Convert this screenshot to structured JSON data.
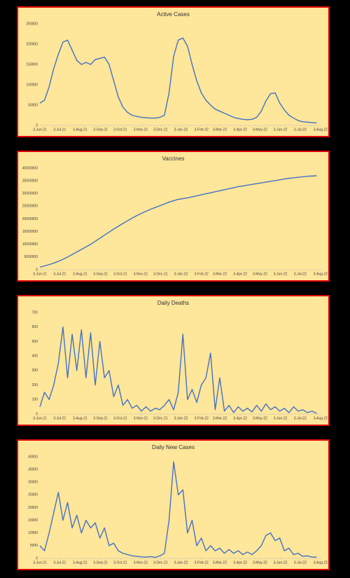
{
  "chart_data": [
    {
      "type": "line",
      "title": "Active Cases",
      "color": "#4472c4",
      "x": [
        "2021-06-03",
        "2021-06-10",
        "2021-06-17",
        "2021-06-24",
        "2021-07-01",
        "2021-07-08",
        "2021-07-15",
        "2021-07-22",
        "2021-07-29",
        "2021-08-05",
        "2021-08-12",
        "2021-08-19",
        "2021-08-26",
        "2021-09-02",
        "2021-09-09",
        "2021-09-16",
        "2021-09-23",
        "2021-09-30",
        "2021-10-07",
        "2021-10-14",
        "2021-10-21",
        "2021-10-28",
        "2021-11-04",
        "2021-11-11",
        "2021-11-18",
        "2021-11-25",
        "2021-12-02",
        "2021-12-09",
        "2021-12-16",
        "2021-12-23",
        "2021-12-30",
        "2022-01-06",
        "2022-01-13",
        "2022-01-20",
        "2022-01-27",
        "2022-02-03",
        "2022-02-10",
        "2022-02-17",
        "2022-02-24",
        "2022-03-03",
        "2022-03-10",
        "2022-03-17",
        "2022-03-24",
        "2022-03-31",
        "2022-04-07",
        "2022-04-14",
        "2022-04-21",
        "2022-04-28",
        "2022-05-05",
        "2022-05-12",
        "2022-05-19",
        "2022-05-26",
        "2022-06-02",
        "2022-06-09",
        "2022-06-16",
        "2022-06-23",
        "2022-06-30",
        "2022-07-07",
        "2022-07-14",
        "2022-07-21",
        "2022-07-28"
      ],
      "values": [
        55000,
        62000,
        95000,
        140000,
        175000,
        205000,
        210000,
        185000,
        160000,
        150000,
        155000,
        150000,
        162000,
        165000,
        168000,
        150000,
        110000,
        70000,
        45000,
        32000,
        25000,
        22000,
        20000,
        19000,
        18000,
        18000,
        20000,
        25000,
        80000,
        170000,
        210000,
        215000,
        195000,
        150000,
        110000,
        80000,
        62000,
        50000,
        40000,
        35000,
        30000,
        25000,
        20000,
        17000,
        15000,
        14000,
        15000,
        20000,
        35000,
        60000,
        78000,
        80000,
        55000,
        38000,
        25000,
        18000,
        12000,
        9000,
        8000,
        7000,
        6000
      ],
      "xlim": [
        "2021-06-03",
        "2022-08-03"
      ],
      "xticks": [
        {
          "value": "2021-06-03",
          "label": "3-Jun-21"
        },
        {
          "value": "2021-07-03",
          "label": "3-Jul-21"
        },
        {
          "value": "2021-08-03",
          "label": "3-Aug-21"
        },
        {
          "value": "2021-09-03",
          "label": "3-Sep-21"
        },
        {
          "value": "2021-10-03",
          "label": "3-Oct-21"
        },
        {
          "value": "2021-11-03",
          "label": "3-Nov-21"
        },
        {
          "value": "2021-12-03",
          "label": "3-Dec-21"
        },
        {
          "value": "2022-01-03",
          "label": "3-Jan-22"
        },
        {
          "value": "2022-02-03",
          "label": "3-Feb-22"
        },
        {
          "value": "2022-03-03",
          "label": "3-Mar-22"
        },
        {
          "value": "2022-04-03",
          "label": "3-Apr-22"
        },
        {
          "value": "2022-05-03",
          "label": "3-May-22"
        },
        {
          "value": "2022-06-03",
          "label": "3-Jun-22"
        },
        {
          "value": "2022-07-03",
          "label": "3-Jul-22"
        },
        {
          "value": "2022-08-03",
          "label": "3-Aug-22"
        }
      ],
      "ylim": [
        0,
        250000
      ],
      "yticks": [
        0,
        50000,
        100000,
        150000,
        200000,
        250000
      ]
    },
    {
      "type": "line",
      "title": "Vaccines",
      "color": "#4472c4",
      "x": [
        "2021-06-03",
        "2021-06-10",
        "2021-06-17",
        "2021-06-24",
        "2021-07-01",
        "2021-07-08",
        "2021-07-15",
        "2021-07-22",
        "2021-07-29",
        "2021-08-05",
        "2021-08-12",
        "2021-08-19",
        "2021-08-26",
        "2021-09-02",
        "2021-09-09",
        "2021-09-16",
        "2021-09-23",
        "2021-09-30",
        "2021-10-07",
        "2021-10-14",
        "2021-10-21",
        "2021-10-28",
        "2021-11-04",
        "2021-11-11",
        "2021-11-18",
        "2021-11-25",
        "2021-12-02",
        "2021-12-09",
        "2021-12-16",
        "2021-12-23",
        "2021-12-30",
        "2022-01-06",
        "2022-01-13",
        "2022-01-20",
        "2022-01-27",
        "2022-02-03",
        "2022-02-10",
        "2022-02-17",
        "2022-02-24",
        "2022-03-03",
        "2022-03-10",
        "2022-03-17",
        "2022-03-24",
        "2022-03-31",
        "2022-04-07",
        "2022-04-14",
        "2022-04-21",
        "2022-04-28",
        "2022-05-05",
        "2022-05-12",
        "2022-05-19",
        "2022-05-26",
        "2022-06-02",
        "2022-06-09",
        "2022-06-16",
        "2022-06-23",
        "2022-06-30",
        "2022-07-07",
        "2022-07-14",
        "2022-07-21",
        "2022-07-28"
      ],
      "values": [
        1000000,
        1500000,
        2000000,
        2600000,
        3300000,
        4100000,
        5000000,
        6000000,
        7000000,
        8000000,
        9000000,
        10000000,
        11200000,
        12400000,
        13600000,
        14800000,
        16000000,
        17100000,
        18200000,
        19300000,
        20300000,
        21300000,
        22200000,
        23000000,
        23800000,
        24500000,
        25200000,
        25900000,
        26600000,
        27200000,
        27700000,
        28000000,
        28300000,
        28700000,
        29100000,
        29500000,
        29900000,
        30300000,
        30700000,
        31100000,
        31500000,
        31900000,
        32300000,
        32700000,
        33000000,
        33300000,
        33600000,
        33900000,
        34200000,
        34500000,
        34800000,
        35100000,
        35400000,
        35700000,
        36000000,
        36200000,
        36400000,
        36600000,
        36800000,
        36900000,
        37000000
      ],
      "xlim": [
        "2021-06-03",
        "2022-08-03"
      ],
      "xticks": [
        {
          "value": "2021-06-03",
          "label": "3-Jun-21"
        },
        {
          "value": "2021-07-03",
          "label": "3-Jul-21"
        },
        {
          "value": "2021-08-03",
          "label": "3-Aug-21"
        },
        {
          "value": "2021-09-03",
          "label": "3-Sep-21"
        },
        {
          "value": "2021-10-03",
          "label": "3-Oct-21"
        },
        {
          "value": "2021-11-03",
          "label": "3-Nov-21"
        },
        {
          "value": "2021-12-03",
          "label": "3-Dec-21"
        },
        {
          "value": "2022-01-03",
          "label": "3-Jan-22"
        },
        {
          "value": "2022-02-03",
          "label": "3-Feb-22"
        },
        {
          "value": "2022-03-03",
          "label": "3-Mar-22"
        },
        {
          "value": "2022-04-03",
          "label": "3-Apr-22"
        },
        {
          "value": "2022-05-03",
          "label": "3-May-22"
        },
        {
          "value": "2022-06-03",
          "label": "3-Jun-22"
        },
        {
          "value": "2022-07-03",
          "label": "3-Jul-22"
        },
        {
          "value": "2022-08-03",
          "label": "3-Aug-22"
        }
      ],
      "ylim": [
        0,
        40000000
      ],
      "yticks": [
        0,
        5000000,
        10000000,
        15000000,
        20000000,
        25000000,
        30000000,
        35000000,
        40000000
      ]
    },
    {
      "type": "line",
      "title": "Daily Deaths",
      "color": "#4472c4",
      "x": [
        "2021-06-03",
        "2021-06-10",
        "2021-06-17",
        "2021-06-24",
        "2021-07-01",
        "2021-07-08",
        "2021-07-15",
        "2021-07-22",
        "2021-07-29",
        "2021-08-05",
        "2021-08-12",
        "2021-08-19",
        "2021-08-26",
        "2021-09-02",
        "2021-09-09",
        "2021-09-16",
        "2021-09-23",
        "2021-09-30",
        "2021-10-07",
        "2021-10-14",
        "2021-10-21",
        "2021-10-28",
        "2021-11-04",
        "2021-11-11",
        "2021-11-18",
        "2021-11-25",
        "2021-12-02",
        "2021-12-09",
        "2021-12-16",
        "2021-12-23",
        "2021-12-30",
        "2022-01-06",
        "2022-01-13",
        "2022-01-20",
        "2022-01-27",
        "2022-02-03",
        "2022-02-10",
        "2022-02-17",
        "2022-02-24",
        "2022-03-03",
        "2022-03-10",
        "2022-03-17",
        "2022-03-24",
        "2022-03-31",
        "2022-04-07",
        "2022-04-14",
        "2022-04-21",
        "2022-04-28",
        "2022-05-05",
        "2022-05-12",
        "2022-05-19",
        "2022-05-26",
        "2022-06-02",
        "2022-06-09",
        "2022-06-16",
        "2022-06-23",
        "2022-06-30",
        "2022-07-07",
        "2022-07-14",
        "2022-07-21",
        "2022-07-28"
      ],
      "values": [
        50,
        150,
        100,
        200,
        350,
        600,
        250,
        550,
        300,
        580,
        250,
        560,
        200,
        500,
        250,
        300,
        120,
        200,
        60,
        100,
        40,
        60,
        20,
        50,
        20,
        40,
        30,
        60,
        100,
        30,
        150,
        550,
        100,
        170,
        80,
        200,
        250,
        420,
        30,
        250,
        20,
        60,
        10,
        50,
        20,
        40,
        15,
        60,
        20,
        70,
        30,
        50,
        20,
        40,
        10,
        50,
        20,
        30,
        10,
        20,
        5
      ],
      "xlim": [
        "2021-06-03",
        "2022-08-03"
      ],
      "xticks": [
        {
          "value": "2021-06-03",
          "label": "3-Jun-21"
        },
        {
          "value": "2021-07-03",
          "label": "3-Jul-21"
        },
        {
          "value": "2021-08-03",
          "label": "3-Aug-21"
        },
        {
          "value": "2021-09-03",
          "label": "3-Sep-21"
        },
        {
          "value": "2021-10-03",
          "label": "3-Oct-21"
        },
        {
          "value": "2021-11-03",
          "label": "3-Nov-21"
        },
        {
          "value": "2021-12-03",
          "label": "3-Dec-21"
        },
        {
          "value": "2022-01-03",
          "label": "3-Jan-22"
        },
        {
          "value": "2022-02-03",
          "label": "3-Feb-22"
        },
        {
          "value": "2022-03-03",
          "label": "3-Mar-22"
        },
        {
          "value": "2022-04-03",
          "label": "3-Apr-22"
        },
        {
          "value": "2022-05-03",
          "label": "3-May-22"
        },
        {
          "value": "2022-06-03",
          "label": "3-Jun-22"
        },
        {
          "value": "2022-07-03",
          "label": "3-Jul-22"
        },
        {
          "value": "2022-08-03",
          "label": "3-Aug-22"
        }
      ],
      "ylim": [
        0,
        700
      ],
      "yticks": [
        0,
        100,
        200,
        300,
        400,
        500,
        600,
        700
      ]
    },
    {
      "type": "line",
      "title": "Daily New Cases",
      "color": "#4472c4",
      "x": [
        "2021-06-03",
        "2021-06-10",
        "2021-06-17",
        "2021-06-24",
        "2021-07-01",
        "2021-07-08",
        "2021-07-15",
        "2021-07-22",
        "2021-07-29",
        "2021-08-05",
        "2021-08-12",
        "2021-08-19",
        "2021-08-26",
        "2021-09-02",
        "2021-09-09",
        "2021-09-16",
        "2021-09-23",
        "2021-09-30",
        "2021-10-07",
        "2021-10-14",
        "2021-10-21",
        "2021-10-28",
        "2021-11-04",
        "2021-11-11",
        "2021-11-18",
        "2021-11-25",
        "2021-12-02",
        "2021-12-09",
        "2021-12-16",
        "2021-12-23",
        "2021-12-30",
        "2022-01-06",
        "2022-01-13",
        "2022-01-20",
        "2022-01-27",
        "2022-02-03",
        "2022-02-10",
        "2022-02-17",
        "2022-02-24",
        "2022-03-03",
        "2022-03-10",
        "2022-03-17",
        "2022-03-24",
        "2022-03-31",
        "2022-04-07",
        "2022-04-14",
        "2022-04-21",
        "2022-04-28",
        "2022-05-05",
        "2022-05-12",
        "2022-05-19",
        "2022-05-26",
        "2022-06-02",
        "2022-06-09",
        "2022-06-16",
        "2022-06-23",
        "2022-06-30",
        "2022-07-07",
        "2022-07-14",
        "2022-07-21",
        "2022-07-28"
      ],
      "values": [
        5000,
        3000,
        10000,
        18000,
        26000,
        15000,
        22000,
        12000,
        17000,
        10000,
        15000,
        12000,
        14000,
        8000,
        12000,
        5000,
        6000,
        3000,
        2000,
        1500,
        1000,
        800,
        600,
        500,
        700,
        400,
        1000,
        2000,
        15000,
        38000,
        25000,
        27000,
        10000,
        15000,
        5000,
        8000,
        3000,
        5000,
        3000,
        4000,
        2000,
        3500,
        2000,
        3000,
        1500,
        2500,
        1500,
        3000,
        5000,
        9000,
        10000,
        7000,
        8000,
        3000,
        4000,
        1500,
        2000,
        800,
        1000,
        500,
        500
      ],
      "xlim": [
        "2021-06-03",
        "2022-08-03"
      ],
      "xticks": [
        {
          "value": "2021-06-03",
          "label": "3-Jun-21"
        },
        {
          "value": "2021-07-03",
          "label": "3-Jul-21"
        },
        {
          "value": "2021-08-03",
          "label": "3-Aug-21"
        },
        {
          "value": "2021-09-03",
          "label": "3-Sep-21"
        },
        {
          "value": "2021-10-03",
          "label": "3-Oct-21"
        },
        {
          "value": "2021-11-03",
          "label": "3-Nov-21"
        },
        {
          "value": "2021-12-03",
          "label": "3-Dec-21"
        },
        {
          "value": "2022-01-03",
          "label": "3-Jan-22"
        },
        {
          "value": "2022-02-03",
          "label": "3-Feb-22"
        },
        {
          "value": "2022-03-03",
          "label": "3-Mar-22"
        },
        {
          "value": "2022-04-03",
          "label": "3-Apr-22"
        },
        {
          "value": "2022-05-03",
          "label": "3-May-22"
        },
        {
          "value": "2022-06-03",
          "label": "3-Jun-22"
        },
        {
          "value": "2022-07-03",
          "label": "3-Jul-22"
        },
        {
          "value": "2022-08-03",
          "label": "3-Aug-22"
        }
      ],
      "ylim": [
        0,
        40000
      ],
      "yticks": [
        0,
        5000,
        10000,
        15000,
        20000,
        25000,
        30000,
        35000,
        40000
      ]
    }
  ]
}
